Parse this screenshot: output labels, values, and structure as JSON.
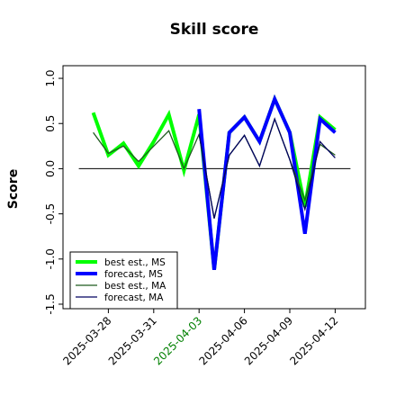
{
  "chart_data": {
    "type": "line",
    "title": "Skill score",
    "y_label": "Score",
    "x": [
      "2025-03-27",
      "2025-03-28",
      "2025-03-29",
      "2025-03-30",
      "2025-03-31",
      "2025-04-01",
      "2025-04-02",
      "2025-04-03",
      "2025-04-04",
      "2025-04-05",
      "2025-04-06",
      "2025-04-07",
      "2025-04-08",
      "2025-04-09",
      "2025-04-10",
      "2025-04-11",
      "2025-04-12"
    ],
    "series": [
      {
        "name": "best est., MS",
        "color": "#00ff00",
        "width": 4,
        "values": [
          0.62,
          0.15,
          0.28,
          0.03,
          0.3,
          0.6,
          -0.02,
          0.6,
          -1.12,
          0.4,
          0.57,
          0.3,
          0.77,
          0.4,
          -0.42,
          0.57,
          0.43
        ]
      },
      {
        "name": "forecast, MS",
        "color": "#0000ff",
        "width": 4,
        "values": [
          null,
          null,
          null,
          null,
          null,
          null,
          null,
          0.66,
          -1.12,
          0.4,
          0.57,
          0.3,
          0.77,
          0.4,
          -0.72,
          0.55,
          0.4
        ]
      },
      {
        "name": "best est., MA",
        "color": "#1e5a1e",
        "width": 1.3,
        "values": [
          0.4,
          0.17,
          0.25,
          0.08,
          0.25,
          0.42,
          0.0,
          0.38,
          -0.55,
          0.15,
          0.37,
          0.03,
          0.55,
          0.1,
          -0.35,
          0.27,
          0.15
        ]
      },
      {
        "name": "forecast, MA",
        "color": "#000060",
        "width": 1.3,
        "values": [
          null,
          null,
          null,
          null,
          null,
          null,
          null,
          0.38,
          -0.55,
          0.15,
          0.37,
          0.03,
          0.55,
          0.1,
          -0.45,
          0.3,
          0.12
        ]
      }
    ],
    "hline": 0,
    "xlim": [
      "2025-03-25",
      "2025-04-14"
    ],
    "xticks": [
      "2025-03-28",
      "2025-03-31",
      "2025-04-03",
      "2025-04-06",
      "2025-04-09",
      "2025-04-12"
    ],
    "xtick_colors": [
      "#000000",
      "#000000",
      "#008000",
      "#000000",
      "#000000",
      "#000000"
    ],
    "ylim": [
      -1.55,
      1.14
    ],
    "yticks": [
      -1.5,
      -1.0,
      -0.5,
      0.0,
      0.5,
      1.0
    ],
    "legend": "lower left"
  }
}
